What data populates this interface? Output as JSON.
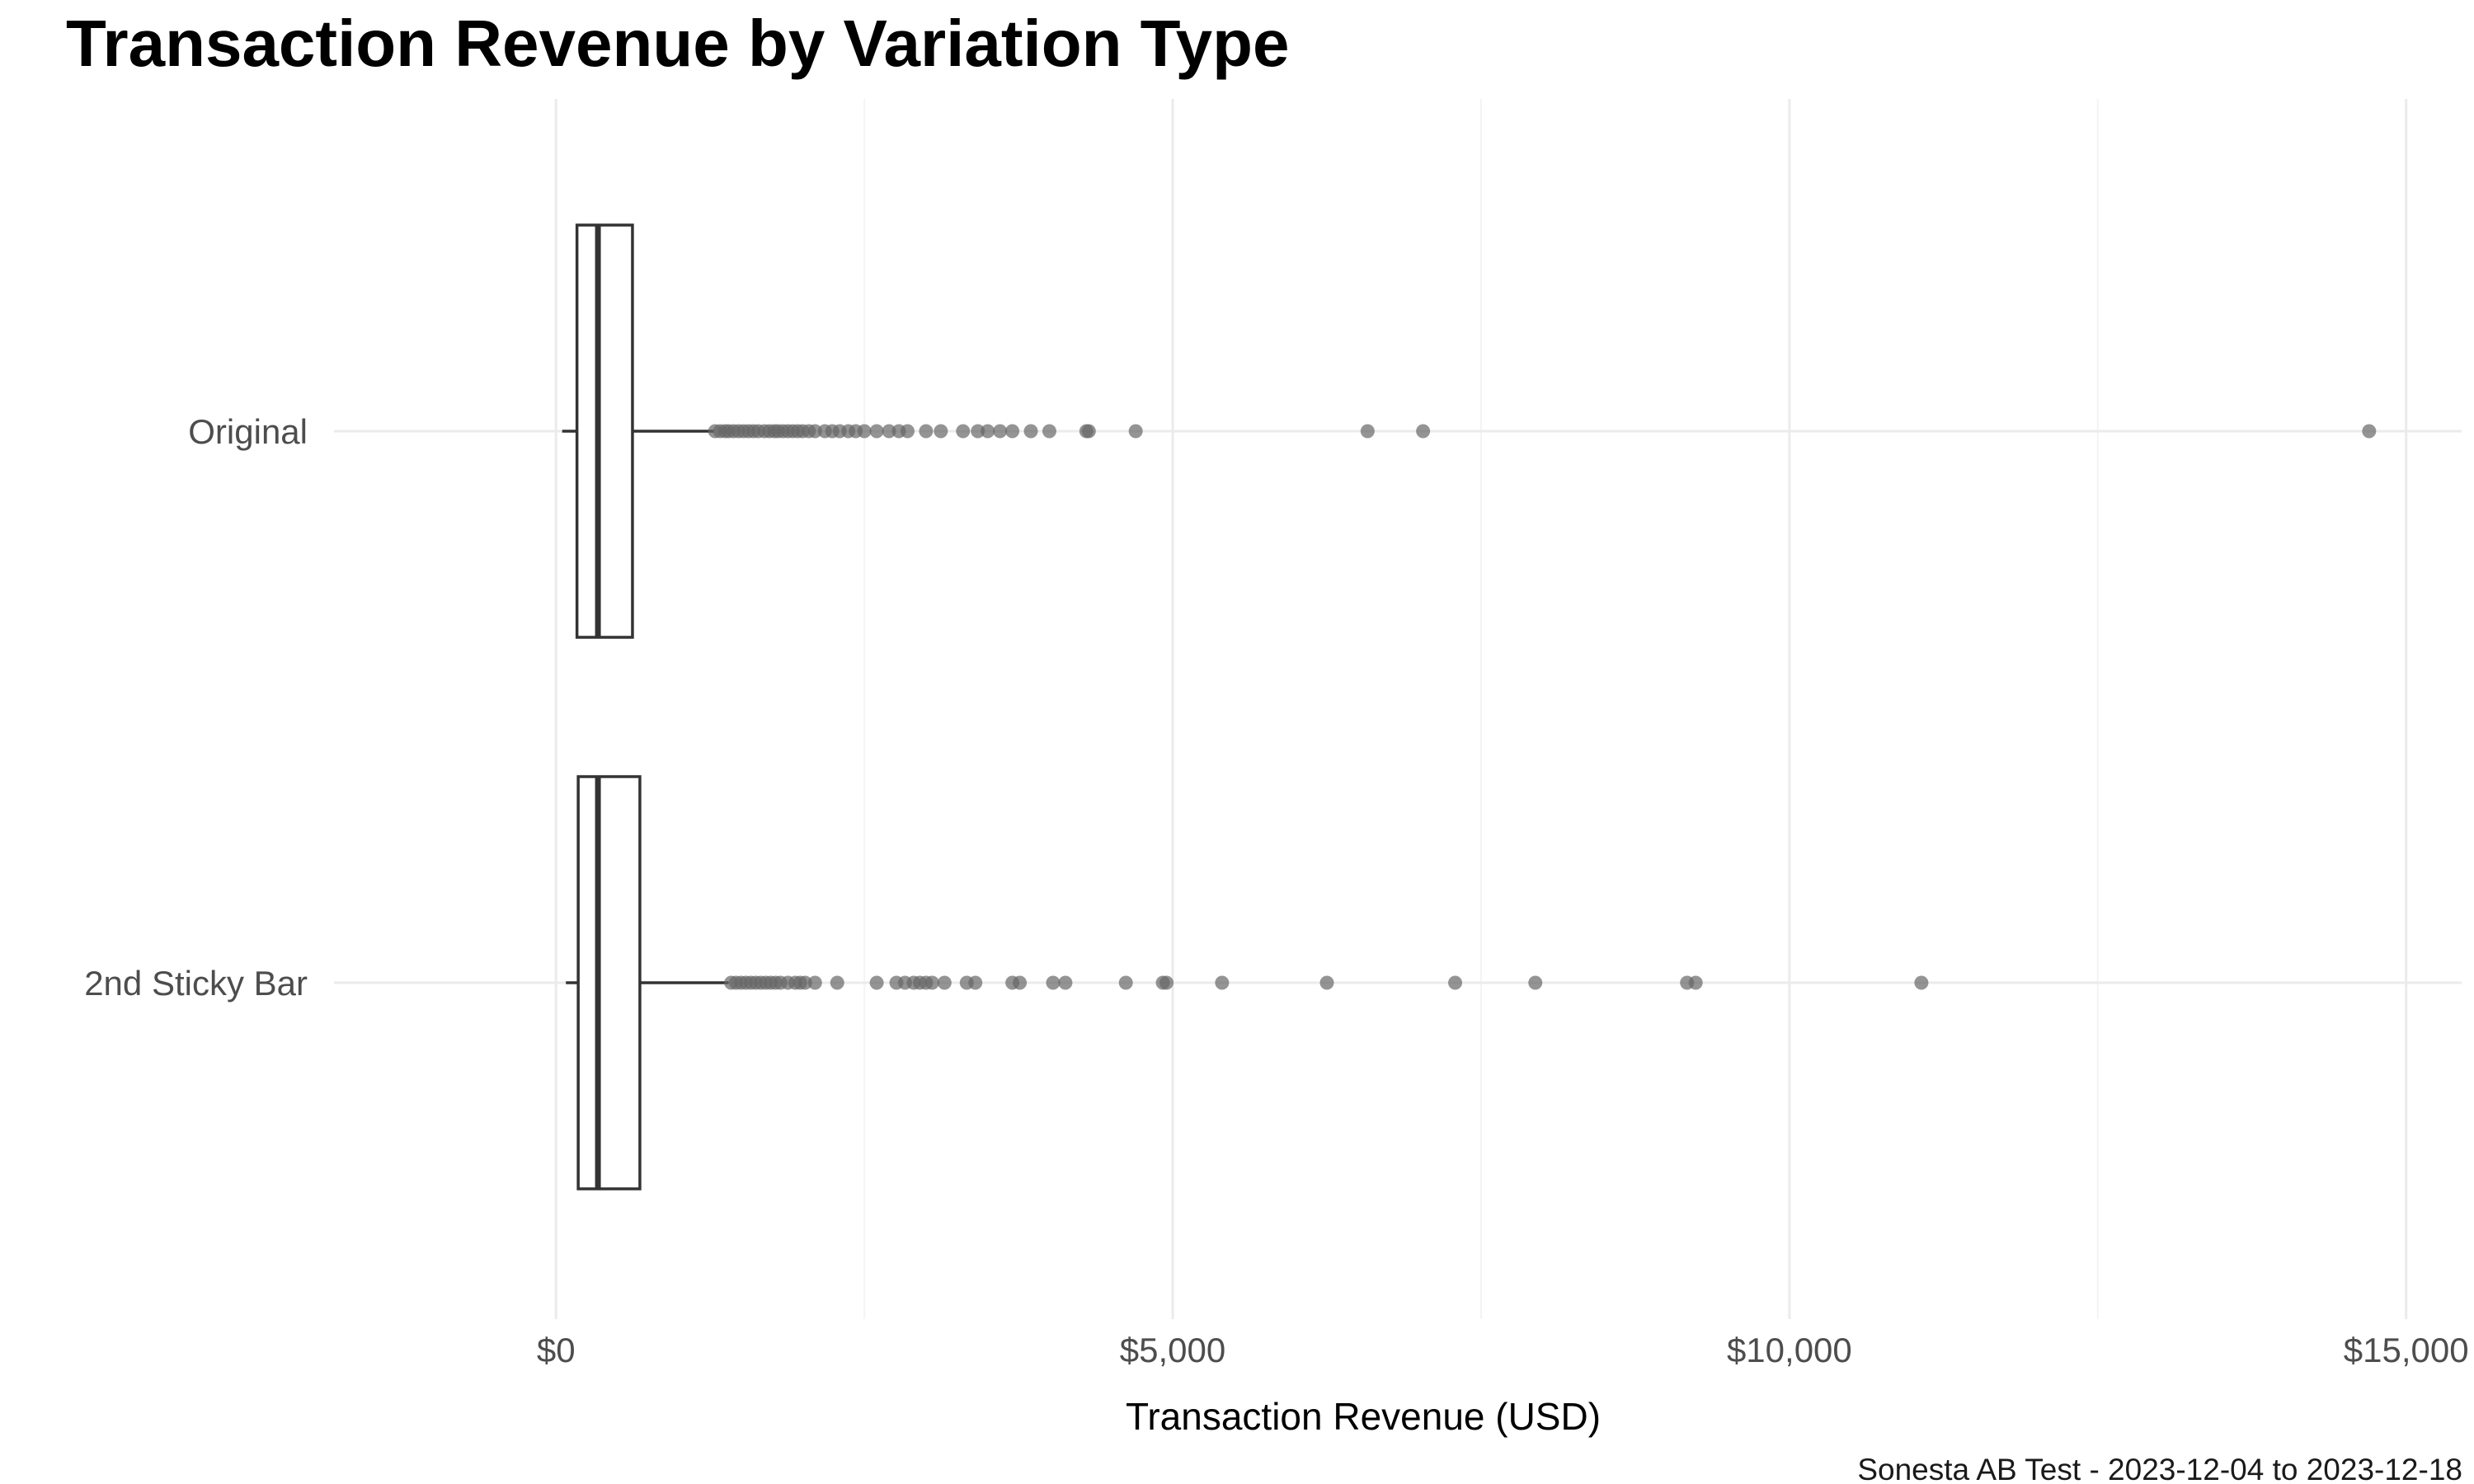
{
  "chart_data": {
    "type": "boxplot",
    "orientation": "horizontal",
    "title": "Transaction Revenue by Variation Type",
    "xlabel": "Transaction Revenue (USD)",
    "ylabel": "",
    "caption": "Sonesta AB Test - 2023-12-04 to 2023-12-18",
    "xlim": [
      -1800,
      15450
    ],
    "x_ticks": [
      0,
      5000,
      10000,
      15000
    ],
    "x_tick_labels": [
      "$0",
      "$5,000",
      "$10,000",
      "$15,000"
    ],
    "grid": true,
    "legend": "none",
    "colors": {
      "box_stroke": "#333333",
      "box_fill": "#ffffff",
      "outlier": "#666666",
      "grid_major": "#ebebeb",
      "grid_minor": "#f4f4f4"
    },
    "series": [
      {
        "name": "Original",
        "min": 50,
        "q1": 170,
        "median": 340,
        "q3": 620,
        "max": 1280,
        "outliers": [
          1290,
          1330,
          1370,
          1400,
          1440,
          1480,
          1520,
          1560,
          1600,
          1640,
          1690,
          1730,
          1770,
          1800,
          1840,
          1880,
          1920,
          1960,
          2000,
          2050,
          2100,
          2180,
          2240,
          2300,
          2370,
          2430,
          2500,
          2600,
          2700,
          2780,
          2850,
          3000,
          3120,
          3300,
          3420,
          3500,
          3600,
          3700,
          3850,
          4000,
          4300,
          4320,
          4700,
          6580,
          7030,
          14700
        ]
      },
      {
        "name": "2nd Sticky Bar",
        "min": 80,
        "q1": 180,
        "median": 340,
        "q3": 680,
        "max": 1400,
        "outliers": [
          1420,
          1460,
          1500,
          1540,
          1580,
          1620,
          1660,
          1700,
          1740,
          1780,
          1820,
          1880,
          1940,
          1980,
          2020,
          2100,
          2280,
          2600,
          2760,
          2830,
          2900,
          2950,
          3000,
          3050,
          3150,
          3330,
          3400,
          3700,
          3760,
          4030,
          4130,
          4620,
          4920,
          4950,
          5400,
          6250,
          7290,
          7940,
          9170,
          9240,
          11070
        ]
      }
    ]
  }
}
